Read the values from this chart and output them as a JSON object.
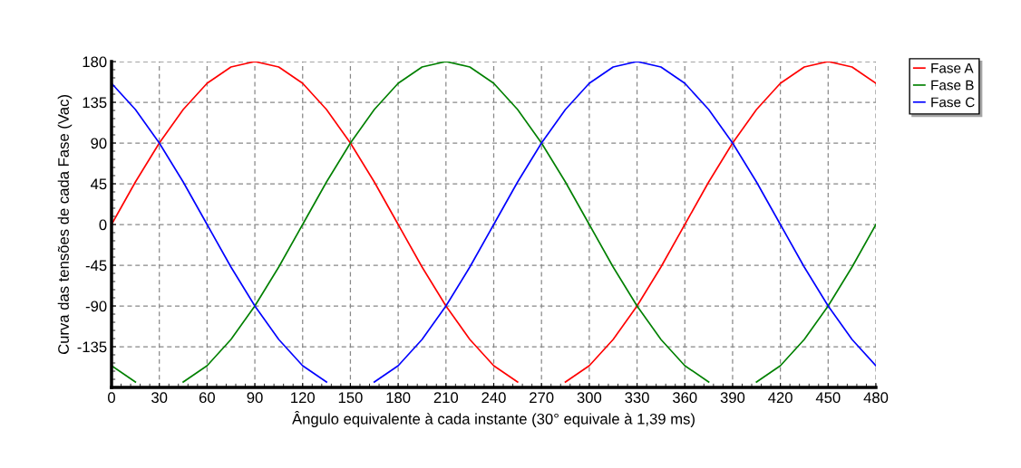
{
  "chart_data": {
    "type": "line",
    "xlabel": "Ângulo equivalente à cada instante (30° equivale à 1,39 ms)",
    "ylabel": "Curva das tensões de cada Fase (Vac)",
    "x": [
      0,
      15,
      30,
      45,
      60,
      75,
      90,
      105,
      120,
      135,
      150,
      165,
      180,
      195,
      210,
      225,
      240,
      255,
      270,
      285,
      300,
      315,
      330,
      345,
      360,
      375,
      390,
      405,
      420,
      435,
      450,
      465,
      480
    ],
    "series": [
      {
        "name": "Fase A",
        "color": "#ff0000",
        "values": [
          0,
          47,
          90,
          127,
          156,
          174,
          180,
          174,
          156,
          127,
          90,
          47,
          0,
          -47,
          -90,
          -127,
          -156,
          -174,
          null,
          -174,
          -156,
          -127,
          -90,
          -47,
          0,
          47,
          90,
          127,
          156,
          174,
          180,
          174,
          156
        ]
      },
      {
        "name": "Fase B",
        "color": "#008000",
        "values": [
          -156,
          -174,
          null,
          -174,
          -156,
          -127,
          -90,
          -47,
          0,
          47,
          90,
          127,
          156,
          174,
          180,
          174,
          156,
          127,
          90,
          47,
          0,
          -47,
          -90,
          -127,
          -156,
          -174,
          null,
          -174,
          -156,
          -127,
          -90,
          -47,
          0
        ]
      },
      {
        "name": "Fase C",
        "color": "#0000ff",
        "values": [
          156,
          127,
          90,
          47,
          0,
          -47,
          -90,
          -127,
          -156,
          -174,
          null,
          -174,
          -156,
          -127,
          -90,
          -47,
          0,
          47,
          90,
          127,
          156,
          174,
          180,
          174,
          156,
          127,
          90,
          47,
          0,
          -47,
          -90,
          -127,
          -156
        ]
      }
    ],
    "xlim": [
      0,
      480
    ],
    "xticks": [
      0,
      30,
      60,
      90,
      120,
      150,
      180,
      210,
      240,
      270,
      300,
      330,
      360,
      390,
      420,
      450,
      480
    ],
    "ylim": [
      -180,
      180
    ],
    "yticks": [
      {
        "value": -180,
        "label": null
      },
      -135,
      -90,
      -45,
      0,
      45,
      90,
      135,
      180
    ],
    "grid": true,
    "legend": "top right",
    "line_style": "solid",
    "marker": "none"
  }
}
